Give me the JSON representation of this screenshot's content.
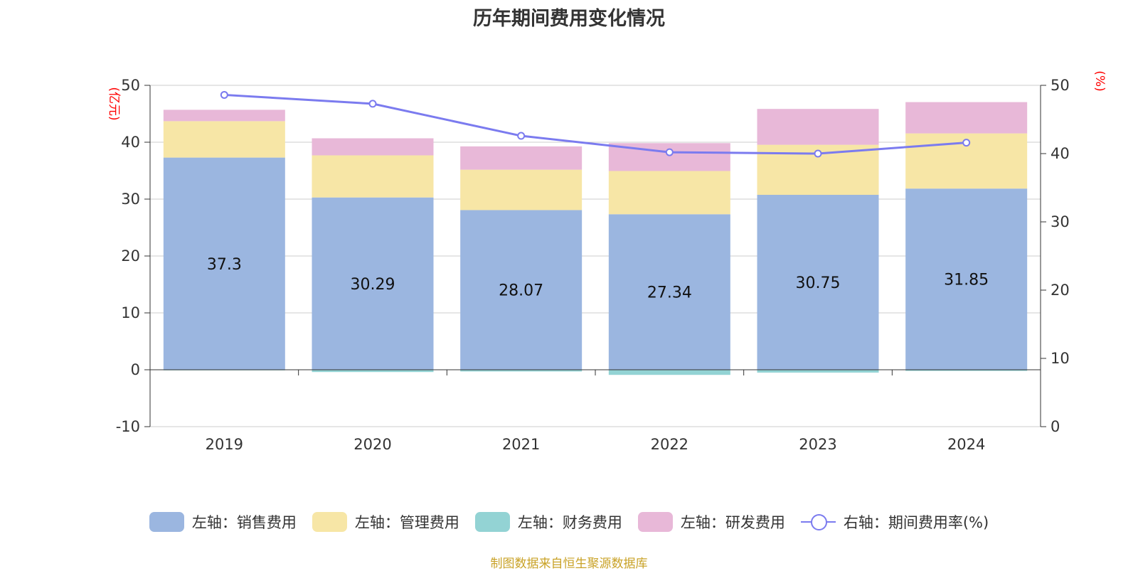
{
  "title": "历年期间费用变化情况",
  "source": "制图数据来自恒生聚源数据库",
  "colors": {
    "sales": "#9bb6e0",
    "admin": "#f7e6a6",
    "finance": "#93d3d4",
    "rnd": "#e8b8d8",
    "rate_line": "#7b7bef",
    "unit": "#ff0000"
  },
  "chart_data": {
    "type": "bar",
    "stacked": true,
    "title": "历年期间费用变化情况",
    "categories": [
      "2019",
      "2020",
      "2021",
      "2022",
      "2023",
      "2024"
    ],
    "left_axis": {
      "unit": "(亿元)",
      "range": [
        -10,
        50
      ],
      "ticks": [
        -10,
        0,
        10,
        20,
        30,
        40,
        50
      ]
    },
    "right_axis": {
      "unit": "(%)",
      "range": [
        0,
        50
      ],
      "ticks": [
        0,
        10,
        20,
        30,
        40,
        50
      ]
    },
    "series": [
      {
        "key": "sales",
        "name": "左轴：销售费用",
        "axis": "left",
        "type": "bar",
        "values": [
          37.3,
          30.29,
          28.07,
          27.34,
          30.75,
          31.85
        ],
        "show_labels": true
      },
      {
        "key": "admin",
        "name": "左轴：管理费用",
        "axis": "left",
        "type": "bar",
        "values": [
          6.4,
          7.4,
          7.1,
          7.6,
          8.8,
          9.7
        ]
      },
      {
        "key": "finance",
        "name": "左轴：财务费用",
        "axis": "left",
        "type": "bar",
        "values": [
          -0.1,
          -0.4,
          -0.3,
          -0.9,
          -0.5,
          -0.2
        ]
      },
      {
        "key": "rnd",
        "name": "左轴：研发费用",
        "axis": "left",
        "type": "bar",
        "values": [
          2.0,
          3.0,
          4.1,
          4.9,
          6.3,
          5.5
        ]
      },
      {
        "key": "rate",
        "name": "右轴：期间费用率(%)",
        "axis": "right",
        "type": "line",
        "values": [
          48.6,
          47.3,
          42.6,
          40.2,
          40.0,
          41.6
        ]
      }
    ],
    "legend_position": "bottom"
  }
}
